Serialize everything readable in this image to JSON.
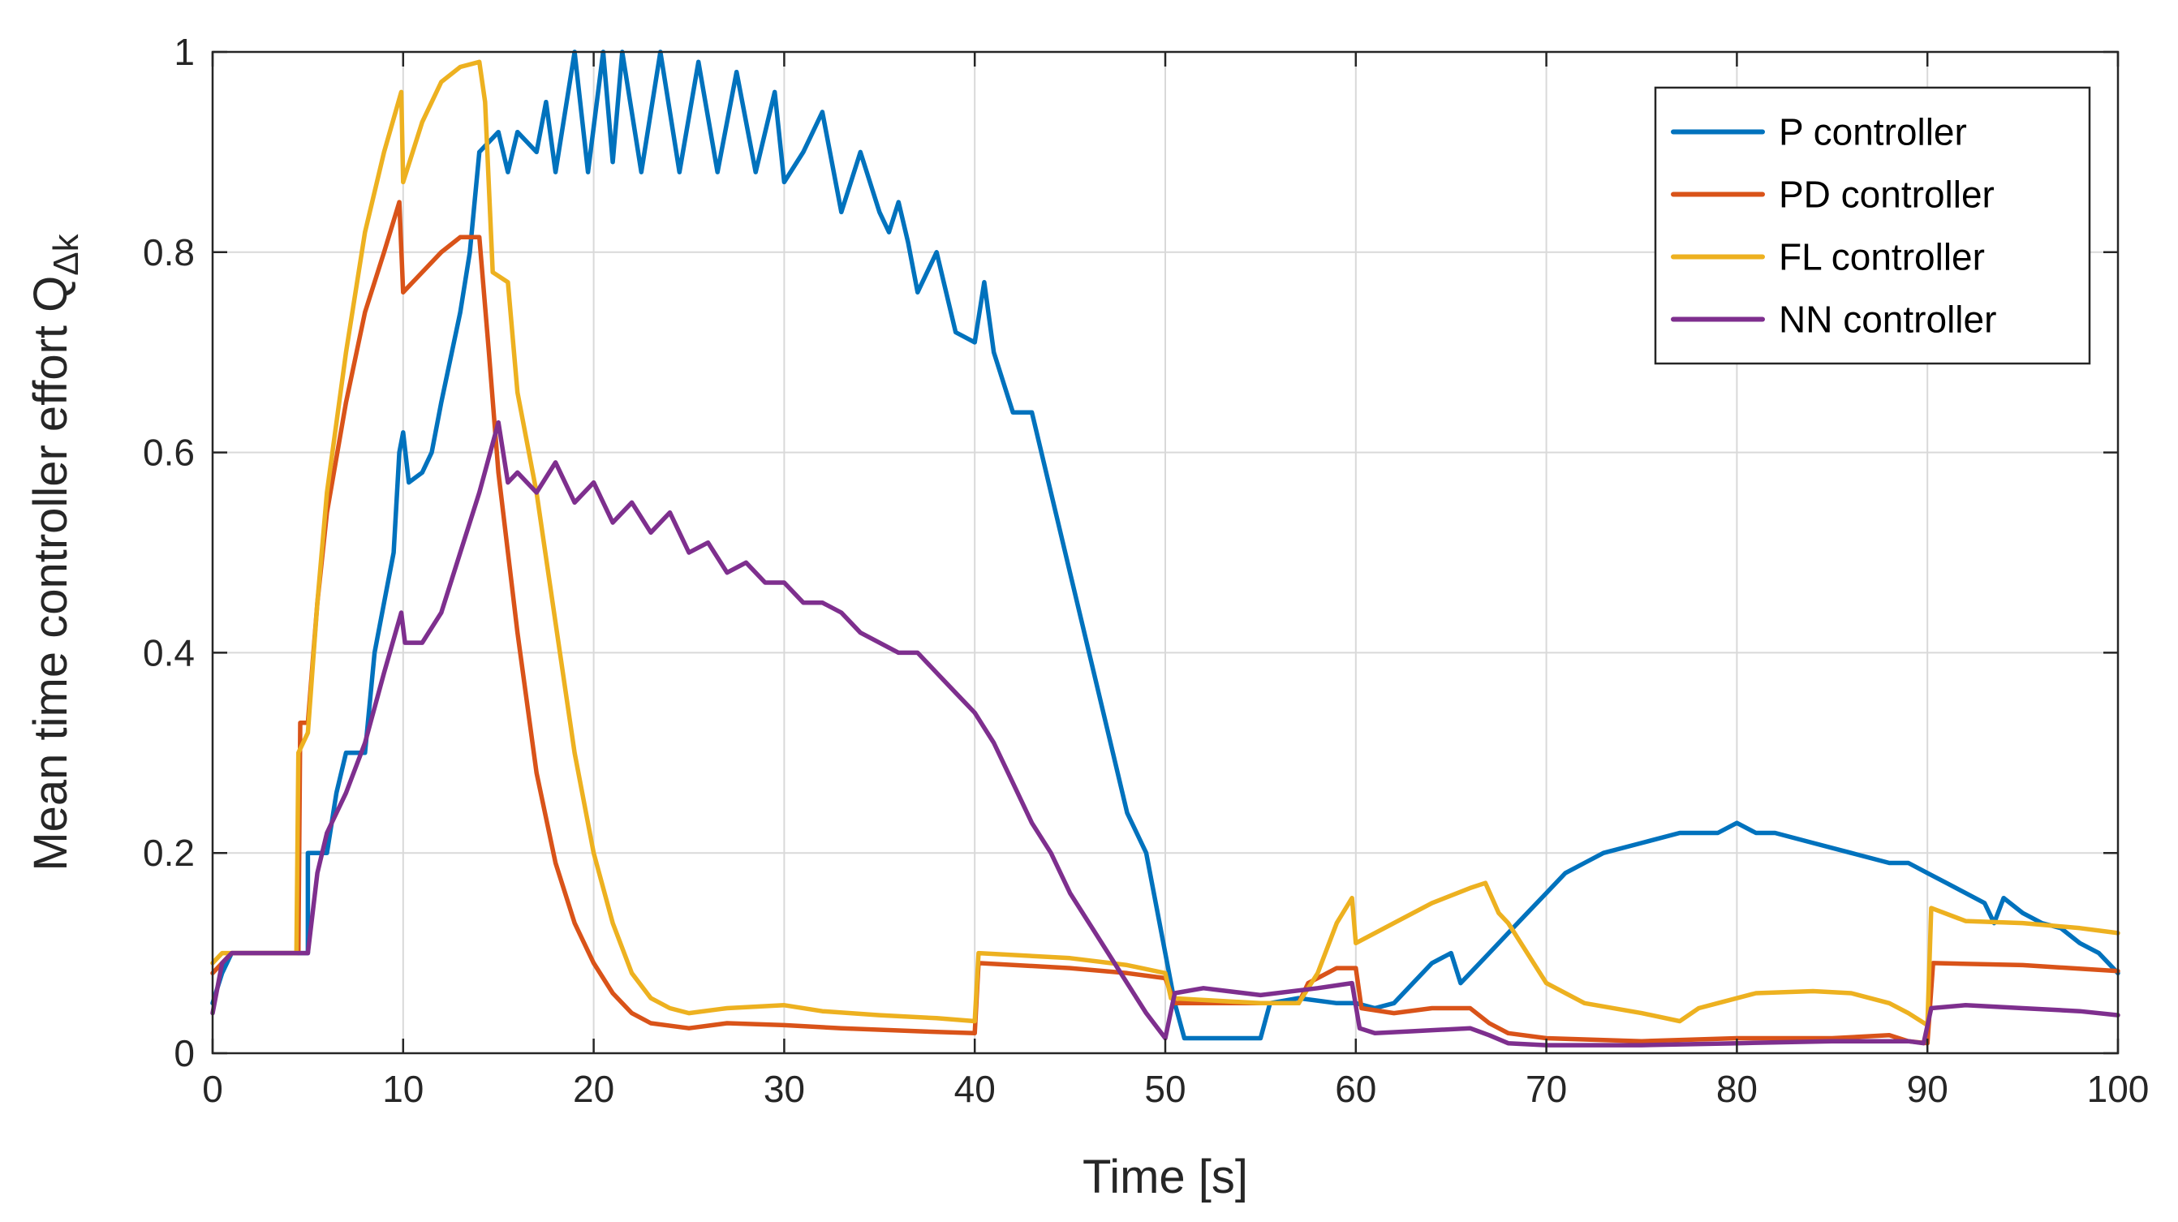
{
  "chart_data": {
    "type": "line",
    "title": "",
    "xlabel": "Time [s]",
    "ylabel_main": "Mean time controller effort Q",
    "ylabel_subscript": "Δk",
    "xlim": [
      0,
      100
    ],
    "ylim": [
      0,
      1
    ],
    "xticks": [
      0,
      10,
      20,
      30,
      40,
      50,
      60,
      70,
      80,
      90,
      100
    ],
    "yticks": [
      0,
      0.2,
      0.4,
      0.6,
      0.8,
      1
    ],
    "ytick_labels": [
      "0",
      "0.2",
      "0.4",
      "0.6",
      "0.8",
      "1"
    ],
    "grid": true,
    "legend_position": "top-right",
    "colors": {
      "axis": "#262626",
      "grid": "#d9d9d9",
      "background": "#ffffff"
    },
    "series": [
      {
        "name": "P controller",
        "color": "#0072BD",
        "points": [
          [
            0,
            0.05
          ],
          [
            0.5,
            0.08
          ],
          [
            1,
            0.1
          ],
          [
            4,
            0.1
          ],
          [
            5,
            0.1
          ],
          [
            5,
            0.2
          ],
          [
            6,
            0.2
          ],
          [
            6.5,
            0.26
          ],
          [
            7,
            0.3
          ],
          [
            8,
            0.3
          ],
          [
            8.5,
            0.4
          ],
          [
            9,
            0.45
          ],
          [
            9.5,
            0.5
          ],
          [
            9.8,
            0.6
          ],
          [
            10,
            0.62
          ],
          [
            10.3,
            0.57
          ],
          [
            11,
            0.58
          ],
          [
            11.5,
            0.6
          ],
          [
            12,
            0.65
          ],
          [
            13,
            0.74
          ],
          [
            13.5,
            0.8
          ],
          [
            14,
            0.9
          ],
          [
            15,
            0.92
          ],
          [
            15.5,
            0.88
          ],
          [
            16,
            0.92
          ],
          [
            17,
            0.9
          ],
          [
            17.5,
            0.95
          ],
          [
            18,
            0.88
          ],
          [
            19,
            1.0
          ],
          [
            19.7,
            0.88
          ],
          [
            20.5,
            1.0
          ],
          [
            21,
            0.89
          ],
          [
            21.5,
            1.0
          ],
          [
            22.5,
            0.88
          ],
          [
            23.5,
            1.0
          ],
          [
            24.5,
            0.88
          ],
          [
            25.5,
            0.99
          ],
          [
            26.5,
            0.88
          ],
          [
            27.5,
            0.98
          ],
          [
            28.5,
            0.88
          ],
          [
            29.5,
            0.96
          ],
          [
            30,
            0.87
          ],
          [
            31,
            0.9
          ],
          [
            32,
            0.94
          ],
          [
            33,
            0.84
          ],
          [
            34,
            0.9
          ],
          [
            35,
            0.84
          ],
          [
            35.5,
            0.82
          ],
          [
            36,
            0.85
          ],
          [
            36.5,
            0.81
          ],
          [
            37,
            0.76
          ],
          [
            38,
            0.8
          ],
          [
            39,
            0.72
          ],
          [
            40,
            0.71
          ],
          [
            40.5,
            0.77
          ],
          [
            41,
            0.7
          ],
          [
            42,
            0.64
          ],
          [
            43,
            0.64
          ],
          [
            44,
            0.56
          ],
          [
            45,
            0.48
          ],
          [
            46,
            0.4
          ],
          [
            47,
            0.32
          ],
          [
            48,
            0.24
          ],
          [
            49,
            0.2
          ],
          [
            50,
            0.1
          ],
          [
            50.5,
            0.05
          ],
          [
            51,
            0.015
          ],
          [
            55,
            0.015
          ],
          [
            55.5,
            0.05
          ],
          [
            57,
            0.055
          ],
          [
            59,
            0.05
          ],
          [
            60,
            0.05
          ],
          [
            61,
            0.045
          ],
          [
            62,
            0.05
          ],
          [
            63,
            0.07
          ],
          [
            64,
            0.09
          ],
          [
            65,
            0.1
          ],
          [
            65.5,
            0.07
          ],
          [
            66,
            0.08
          ],
          [
            67,
            0.1
          ],
          [
            68,
            0.12
          ],
          [
            69,
            0.14
          ],
          [
            70,
            0.16
          ],
          [
            71,
            0.18
          ],
          [
            72,
            0.19
          ],
          [
            73,
            0.2
          ],
          [
            75,
            0.21
          ],
          [
            77,
            0.22
          ],
          [
            79,
            0.22
          ],
          [
            80,
            0.23
          ],
          [
            81,
            0.22
          ],
          [
            82,
            0.22
          ],
          [
            84,
            0.21
          ],
          [
            86,
            0.2
          ],
          [
            88,
            0.19
          ],
          [
            89,
            0.19
          ],
          [
            90,
            0.18
          ],
          [
            91,
            0.17
          ],
          [
            92,
            0.16
          ],
          [
            93,
            0.15
          ],
          [
            93.5,
            0.13
          ],
          [
            94,
            0.155
          ],
          [
            95,
            0.14
          ],
          [
            96,
            0.13
          ],
          [
            97,
            0.125
          ],
          [
            98,
            0.11
          ],
          [
            99,
            0.1
          ],
          [
            100,
            0.08
          ]
        ]
      },
      {
        "name": "PD controller",
        "color": "#D95319",
        "points": [
          [
            0,
            0.08
          ],
          [
            0.5,
            0.09
          ],
          [
            1,
            0.1
          ],
          [
            4,
            0.1
          ],
          [
            4.5,
            0.1
          ],
          [
            4.6,
            0.33
          ],
          [
            5,
            0.33
          ],
          [
            5.5,
            0.45
          ],
          [
            6,
            0.54
          ],
          [
            7,
            0.65
          ],
          [
            8,
            0.74
          ],
          [
            9,
            0.8
          ],
          [
            9.8,
            0.85
          ],
          [
            10,
            0.76
          ],
          [
            11,
            0.78
          ],
          [
            12,
            0.8
          ],
          [
            13,
            0.815
          ],
          [
            14,
            0.815
          ],
          [
            14.5,
            0.7
          ],
          [
            15,
            0.58
          ],
          [
            16,
            0.42
          ],
          [
            17,
            0.28
          ],
          [
            18,
            0.19
          ],
          [
            19,
            0.13
          ],
          [
            20,
            0.09
          ],
          [
            21,
            0.06
          ],
          [
            22,
            0.04
          ],
          [
            23,
            0.03
          ],
          [
            25,
            0.025
          ],
          [
            27,
            0.03
          ],
          [
            30,
            0.028
          ],
          [
            33,
            0.025
          ],
          [
            37,
            0.022
          ],
          [
            40,
            0.02
          ],
          [
            40.2,
            0.09
          ],
          [
            45,
            0.085
          ],
          [
            48,
            0.08
          ],
          [
            50,
            0.075
          ],
          [
            50.5,
            0.05
          ],
          [
            53,
            0.05
          ],
          [
            57,
            0.05
          ],
          [
            57.5,
            0.07
          ],
          [
            59,
            0.085
          ],
          [
            60,
            0.085
          ],
          [
            60.3,
            0.045
          ],
          [
            62,
            0.04
          ],
          [
            64,
            0.045
          ],
          [
            66,
            0.045
          ],
          [
            67,
            0.03
          ],
          [
            68,
            0.02
          ],
          [
            70,
            0.015
          ],
          [
            75,
            0.012
          ],
          [
            80,
            0.015
          ],
          [
            85,
            0.015
          ],
          [
            88,
            0.018
          ],
          [
            89,
            0.012
          ],
          [
            90,
            0.01
          ],
          [
            90.3,
            0.09
          ],
          [
            95,
            0.088
          ],
          [
            100,
            0.082
          ]
        ]
      },
      {
        "name": "FL controller",
        "color": "#EDB120",
        "points": [
          [
            0,
            0.09
          ],
          [
            0.5,
            0.1
          ],
          [
            1,
            0.1
          ],
          [
            4,
            0.1
          ],
          [
            4.4,
            0.1
          ],
          [
            4.5,
            0.3
          ],
          [
            5,
            0.32
          ],
          [
            5.5,
            0.45
          ],
          [
            6,
            0.56
          ],
          [
            7,
            0.7
          ],
          [
            8,
            0.82
          ],
          [
            9,
            0.9
          ],
          [
            9.9,
            0.96
          ],
          [
            10,
            0.87
          ],
          [
            11,
            0.93
          ],
          [
            12,
            0.97
          ],
          [
            13,
            0.985
          ],
          [
            14,
            0.99
          ],
          [
            14.3,
            0.95
          ],
          [
            14.7,
            0.78
          ],
          [
            15.5,
            0.77
          ],
          [
            16,
            0.66
          ],
          [
            17,
            0.56
          ],
          [
            18,
            0.43
          ],
          [
            19,
            0.3
          ],
          [
            20,
            0.2
          ],
          [
            21,
            0.13
          ],
          [
            22,
            0.08
          ],
          [
            23,
            0.055
          ],
          [
            24,
            0.045
          ],
          [
            25,
            0.04
          ],
          [
            27,
            0.045
          ],
          [
            30,
            0.048
          ],
          [
            32,
            0.042
          ],
          [
            35,
            0.038
          ],
          [
            38,
            0.035
          ],
          [
            40,
            0.032
          ],
          [
            40.2,
            0.1
          ],
          [
            45,
            0.095
          ],
          [
            48,
            0.088
          ],
          [
            50,
            0.08
          ],
          [
            50.3,
            0.055
          ],
          [
            55,
            0.05
          ],
          [
            57,
            0.05
          ],
          [
            58,
            0.08
          ],
          [
            59,
            0.13
          ],
          [
            59.8,
            0.155
          ],
          [
            60,
            0.11
          ],
          [
            62,
            0.13
          ],
          [
            64,
            0.15
          ],
          [
            66,
            0.165
          ],
          [
            66.8,
            0.17
          ],
          [
            67.5,
            0.14
          ],
          [
            68,
            0.13
          ],
          [
            69,
            0.1
          ],
          [
            70,
            0.07
          ],
          [
            72,
            0.05
          ],
          [
            75,
            0.04
          ],
          [
            77,
            0.032
          ],
          [
            78,
            0.045
          ],
          [
            79,
            0.05
          ],
          [
            81,
            0.06
          ],
          [
            84,
            0.062
          ],
          [
            86,
            0.06
          ],
          [
            88,
            0.05
          ],
          [
            89,
            0.04
          ],
          [
            90,
            0.028
          ],
          [
            90.2,
            0.145
          ],
          [
            92,
            0.132
          ],
          [
            95,
            0.13
          ],
          [
            98,
            0.125
          ],
          [
            100,
            0.12
          ]
        ]
      },
      {
        "name": "NN controller",
        "color": "#7E2F8E",
        "points": [
          [
            0,
            0.04
          ],
          [
            0.5,
            0.09
          ],
          [
            1,
            0.1
          ],
          [
            4,
            0.1
          ],
          [
            5,
            0.1
          ],
          [
            5.5,
            0.18
          ],
          [
            6,
            0.22
          ],
          [
            7,
            0.26
          ],
          [
            8,
            0.31
          ],
          [
            9,
            0.38
          ],
          [
            9.9,
            0.44
          ],
          [
            10.1,
            0.41
          ],
          [
            11,
            0.41
          ],
          [
            12,
            0.44
          ],
          [
            13,
            0.5
          ],
          [
            14,
            0.56
          ],
          [
            15,
            0.63
          ],
          [
            15.5,
            0.57
          ],
          [
            16,
            0.58
          ],
          [
            17,
            0.56
          ],
          [
            18,
            0.59
          ],
          [
            19,
            0.55
          ],
          [
            20,
            0.57
          ],
          [
            21,
            0.53
          ],
          [
            22,
            0.55
          ],
          [
            23,
            0.52
          ],
          [
            24,
            0.54
          ],
          [
            25,
            0.5
          ],
          [
            26,
            0.51
          ],
          [
            27,
            0.48
          ],
          [
            28,
            0.49
          ],
          [
            29,
            0.47
          ],
          [
            30,
            0.47
          ],
          [
            31,
            0.45
          ],
          [
            32,
            0.45
          ],
          [
            33,
            0.44
          ],
          [
            34,
            0.42
          ],
          [
            35,
            0.41
          ],
          [
            36,
            0.4
          ],
          [
            37,
            0.4
          ],
          [
            38,
            0.38
          ],
          [
            39,
            0.36
          ],
          [
            40,
            0.34
          ],
          [
            41,
            0.31
          ],
          [
            42,
            0.27
          ],
          [
            43,
            0.23
          ],
          [
            44,
            0.2
          ],
          [
            45,
            0.16
          ],
          [
            46,
            0.13
          ],
          [
            47,
            0.1
          ],
          [
            48,
            0.07
          ],
          [
            49,
            0.04
          ],
          [
            50,
            0.015
          ],
          [
            50.5,
            0.06
          ],
          [
            52,
            0.065
          ],
          [
            55,
            0.058
          ],
          [
            58,
            0.065
          ],
          [
            59.8,
            0.07
          ],
          [
            60.2,
            0.025
          ],
          [
            61,
            0.02
          ],
          [
            63,
            0.022
          ],
          [
            66,
            0.025
          ],
          [
            67,
            0.018
          ],
          [
            68,
            0.01
          ],
          [
            70,
            0.008
          ],
          [
            75,
            0.008
          ],
          [
            80,
            0.01
          ],
          [
            85,
            0.012
          ],
          [
            89,
            0.012
          ],
          [
            89.8,
            0.01
          ],
          [
            90.2,
            0.045
          ],
          [
            92,
            0.048
          ],
          [
            95,
            0.045
          ],
          [
            98,
            0.042
          ],
          [
            100,
            0.038
          ]
        ]
      }
    ]
  }
}
